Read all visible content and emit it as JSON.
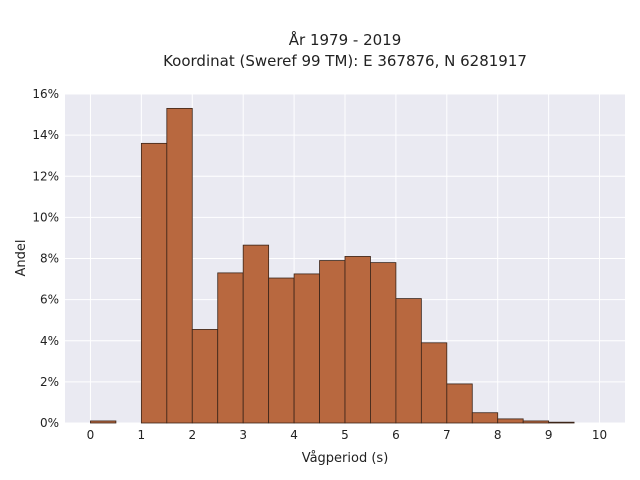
{
  "chart_data": {
    "type": "bar",
    "title_line1": "År 1979 - 2019",
    "title_line2": "Koordinat (Sweref 99 TM): E 367876, N 6281917",
    "xlabel": "Vågperiod (s)",
    "ylabel": "Andel",
    "xlim": [
      -0.5,
      10.5
    ],
    "ylim": [
      0,
      0.16
    ],
    "x_ticks": [
      0,
      1,
      2,
      3,
      4,
      5,
      6,
      7,
      8,
      9,
      10
    ],
    "y_ticks": [
      0,
      0.02,
      0.04,
      0.06,
      0.08,
      0.1,
      0.12,
      0.14,
      0.16
    ],
    "y_tick_labels": [
      "0%",
      "2%",
      "4%",
      "6%",
      "8%",
      "10%",
      "12%",
      "14%",
      "16%"
    ],
    "bin_width": 0.5,
    "bins": [
      {
        "x": 0.0,
        "value": 0.001
      },
      {
        "x": 0.5,
        "value": 0.0
      },
      {
        "x": 1.0,
        "value": 0.136
      },
      {
        "x": 1.5,
        "value": 0.153
      },
      {
        "x": 2.0,
        "value": 0.0455
      },
      {
        "x": 2.5,
        "value": 0.073
      },
      {
        "x": 3.0,
        "value": 0.0865
      },
      {
        "x": 3.5,
        "value": 0.0705
      },
      {
        "x": 4.0,
        "value": 0.0725
      },
      {
        "x": 4.5,
        "value": 0.079
      },
      {
        "x": 5.0,
        "value": 0.081
      },
      {
        "x": 5.5,
        "value": 0.078
      },
      {
        "x": 6.0,
        "value": 0.0605
      },
      {
        "x": 6.5,
        "value": 0.039
      },
      {
        "x": 7.0,
        "value": 0.019
      },
      {
        "x": 7.5,
        "value": 0.005
      },
      {
        "x": 8.0,
        "value": 0.002
      },
      {
        "x": 8.5,
        "value": 0.001
      },
      {
        "x": 9.0,
        "value": 0.0004
      },
      {
        "x": 9.5,
        "value": 0.0
      }
    ],
    "bar_color": "#b8683f",
    "plot_background": "#eaeaf2",
    "grid": true,
    "legend": false
  }
}
